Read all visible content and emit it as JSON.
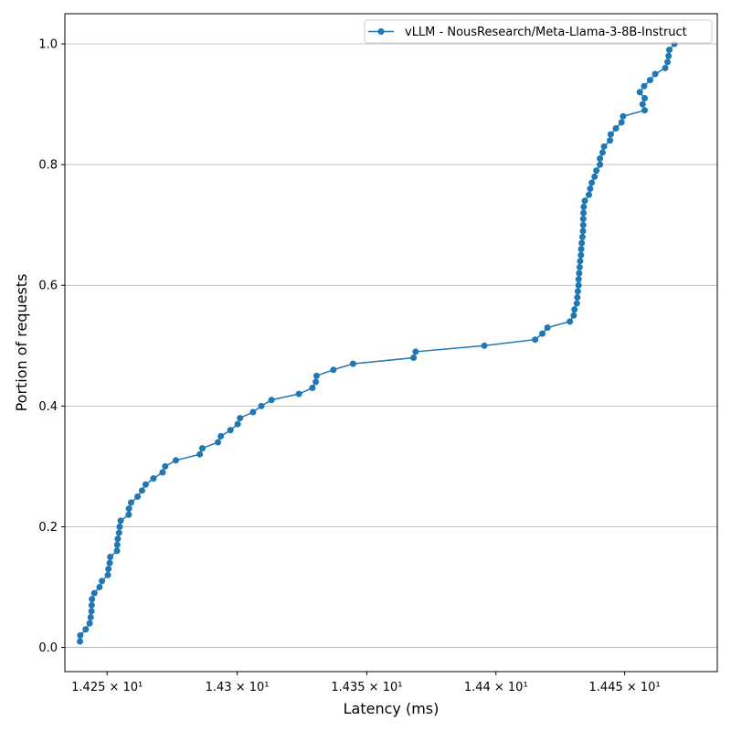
{
  "chart_data": {
    "type": "line",
    "title": "",
    "xlabel": "Latency (ms)",
    "ylabel": "Portion of requests",
    "xscale": "log",
    "xlim": [
      14.2338,
      14.4861
    ],
    "ylim": [
      -0.04,
      1.05
    ],
    "grid": "y-major",
    "legend": "top-right",
    "x_ticks": [
      {
        "value": 14.25,
        "label": "1.425 × 10¹"
      },
      {
        "value": 14.3,
        "label": "1.43 × 10¹"
      },
      {
        "value": 14.35,
        "label": "1.435 × 10¹"
      },
      {
        "value": 14.4,
        "label": "1.44 × 10¹"
      },
      {
        "value": 14.45,
        "label": "1.445 × 10¹"
      }
    ],
    "y_ticks": [
      {
        "value": 0.0,
        "label": "0.0"
      },
      {
        "value": 0.2,
        "label": "0.2"
      },
      {
        "value": 0.4,
        "label": "0.4"
      },
      {
        "value": 0.6,
        "label": "0.6"
      },
      {
        "value": 0.8,
        "label": "0.8"
      },
      {
        "value": 1.0,
        "label": "1.0"
      }
    ],
    "series": [
      {
        "name": "vLLM - NousResearch/Meta-Llama-3-8B-Instruct",
        "color": "#1f77b4",
        "marker": "circle",
        "x": [
          14.2396,
          14.2397,
          14.2418,
          14.2433,
          14.2437,
          14.244,
          14.2441,
          14.2442,
          14.2451,
          14.2471,
          14.248,
          14.2503,
          14.2505,
          14.251,
          14.2512,
          14.2538,
          14.2539,
          14.2541,
          14.2546,
          14.2548,
          14.2552,
          14.2583,
          14.2584,
          14.2592,
          14.2617,
          14.2634,
          14.2648,
          14.2678,
          14.2713,
          14.2723,
          14.2764,
          14.2856,
          14.2866,
          14.2926,
          14.2937,
          14.2974,
          14.3002,
          14.3011,
          14.3061,
          14.3093,
          14.3132,
          14.3238,
          14.329,
          14.3303,
          14.3306,
          14.3371,
          14.3447,
          14.3681,
          14.3689,
          14.3955,
          14.4152,
          14.418,
          14.42,
          14.4287,
          14.4302,
          14.4305,
          14.4314,
          14.4316,
          14.4318,
          14.4321,
          14.4321,
          14.4323,
          14.4325,
          14.4327,
          14.433,
          14.4331,
          14.4333,
          14.4336,
          14.4338,
          14.4339,
          14.4339,
          14.434,
          14.4341,
          14.4345,
          14.4361,
          14.4366,
          14.4372,
          14.4383,
          14.439,
          14.4404,
          14.4404,
          14.4414,
          14.442,
          14.4443,
          14.4446,
          14.4466,
          14.4488,
          14.4494,
          14.4578,
          14.457,
          14.4578,
          14.4559,
          14.4576,
          14.4599,
          14.4619,
          14.4658,
          14.4667,
          14.4671,
          14.4674,
          14.4694
        ],
        "y": [
          0.01,
          0.02,
          0.03,
          0.04,
          0.05,
          0.06,
          0.07,
          0.08,
          0.09,
          0.1,
          0.11,
          0.12,
          0.13,
          0.14,
          0.15,
          0.16,
          0.17,
          0.18,
          0.19,
          0.2,
          0.21,
          0.22,
          0.23,
          0.24,
          0.25,
          0.26,
          0.27,
          0.28,
          0.29,
          0.3,
          0.31,
          0.32,
          0.33,
          0.34,
          0.35,
          0.36,
          0.37,
          0.38,
          0.39,
          0.4,
          0.41,
          0.42,
          0.43,
          0.44,
          0.45,
          0.46,
          0.47,
          0.48,
          0.49,
          0.5,
          0.51,
          0.52,
          0.53,
          0.54,
          0.55,
          0.56,
          0.57,
          0.58,
          0.59,
          0.6,
          0.61,
          0.62,
          0.63,
          0.64,
          0.65,
          0.66,
          0.67,
          0.68,
          0.69,
          0.7,
          0.71,
          0.72,
          0.73,
          0.74,
          0.75,
          0.76,
          0.77,
          0.78,
          0.79,
          0.8,
          0.81,
          0.82,
          0.83,
          0.84,
          0.85,
          0.86,
          0.87,
          0.88,
          0.89,
          0.9,
          0.91,
          0.92,
          0.93,
          0.94,
          0.95,
          0.96,
          0.97,
          0.98,
          0.99,
          1.0
        ]
      }
    ]
  }
}
